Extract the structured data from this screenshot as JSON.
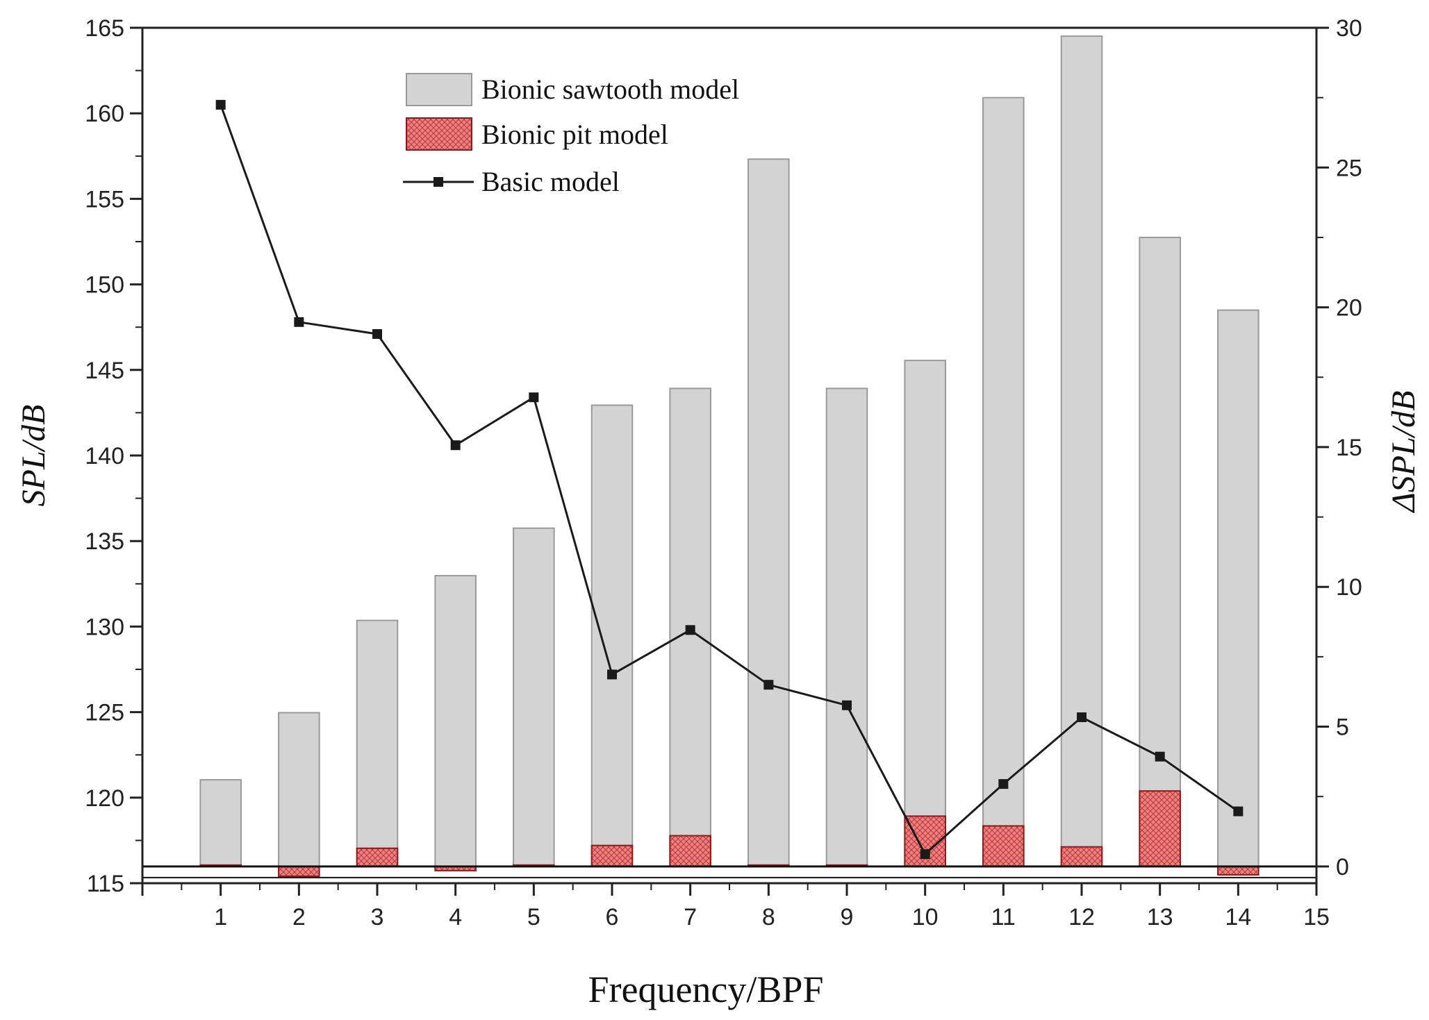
{
  "chart_data": {
    "type": "bar",
    "title": "",
    "xlabel": "Frequency/BPF",
    "ylabel": "SPL/dB",
    "y2label": "ΔSPL/dB",
    "xlim": [
      0,
      15
    ],
    "ylim": [
      115,
      165
    ],
    "y2lim": [
      -0.6,
      30
    ],
    "x_ticks": [
      "1",
      "2",
      "3",
      "4",
      "5",
      "6",
      "7",
      "8",
      "9",
      "10",
      "11",
      "12",
      "13",
      "14",
      "15"
    ],
    "y_ticks": [
      "115",
      "120",
      "125",
      "130",
      "135",
      "140",
      "145",
      "150",
      "155",
      "160",
      "165"
    ],
    "y2_ticks": [
      "0",
      "5",
      "10",
      "15",
      "20",
      "25",
      "30"
    ],
    "grid": false,
    "legend_position": "top-center",
    "x": [
      1,
      2,
      3,
      4,
      5,
      6,
      7,
      8,
      9,
      10,
      11,
      12,
      13,
      14
    ],
    "series": [
      {
        "name": "Bionic sawtooth model",
        "type": "bar",
        "axis": "right",
        "color": "#d3d3d3",
        "values": [
          3.1,
          5.5,
          8.8,
          10.4,
          12.1,
          16.5,
          17.1,
          25.3,
          17.1,
          18.1,
          27.5,
          29.7,
          22.5,
          19.9
        ]
      },
      {
        "name": "Bionic pit model",
        "type": "bar",
        "axis": "right",
        "color": "#f08080",
        "values": [
          0,
          -0.35,
          0.65,
          -0.15,
          0.05,
          0.75,
          1.1,
          0.05,
          0,
          1.8,
          1.45,
          0.7,
          2.7,
          -0.3
        ]
      },
      {
        "name": "Basic model",
        "type": "line",
        "axis": "left",
        "color": "#1a1a1a",
        "values": [
          160.5,
          147.8,
          147.1,
          140.6,
          143.4,
          127.2,
          129.8,
          126.6,
          125.4,
          116.7,
          120.8,
          124.7,
          122.4,
          119.2
        ]
      }
    ]
  }
}
